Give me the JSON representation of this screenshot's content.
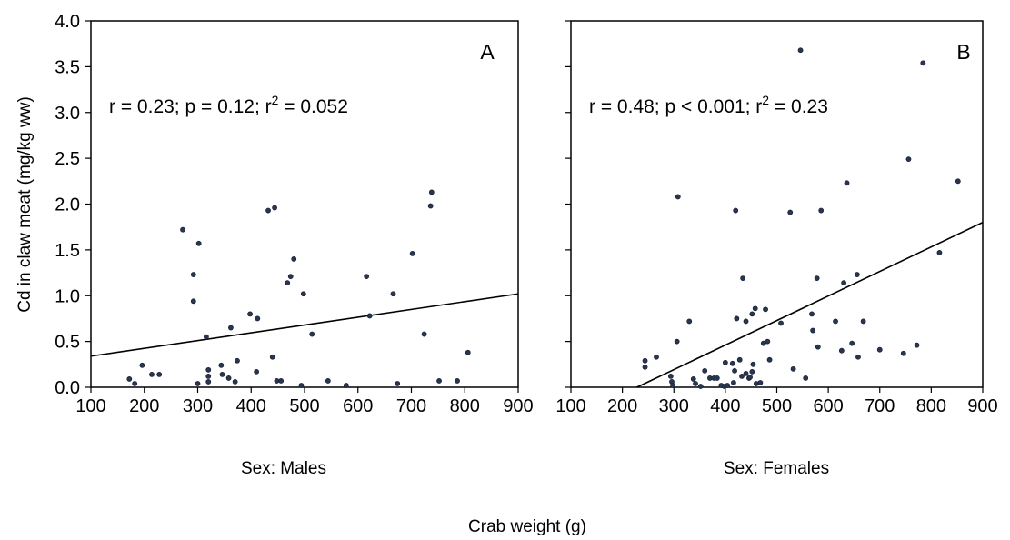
{
  "ylabel": "Cd in claw meat (mg/kg ww)",
  "xlabel": "Crab weight (g)",
  "chart_data": [
    {
      "type": "scatter",
      "panel": "A",
      "subtitle": "Sex: Males",
      "stats": {
        "r": "0.23",
        "p": "0.12",
        "r2": "0.052"
      },
      "annotation": {
        "prefix": "r = 0.23; p = 0.12; r",
        "sup": "2",
        "suffix": " = 0.052"
      },
      "xlim": [
        100,
        900
      ],
      "ylim": [
        0,
        4
      ],
      "xticks": [
        "100",
        "200",
        "300",
        "400",
        "500",
        "600",
        "700",
        "800",
        "900"
      ],
      "yticks": [
        "0.0",
        "0.5",
        "1.0",
        "1.5",
        "2.0",
        "2.5",
        "3.0",
        "3.5",
        "4.0"
      ],
      "regression_line": {
        "x": [
          100,
          900
        ],
        "y": [
          0.34,
          1.02
        ]
      },
      "points": [
        [
          172,
          0.09
        ],
        [
          182,
          0.04
        ],
        [
          196,
          0.24
        ],
        [
          214,
          0.14
        ],
        [
          228,
          0.14
        ],
        [
          272,
          1.72
        ],
        [
          292,
          1.23
        ],
        [
          292,
          0.94
        ],
        [
          300,
          0.04
        ],
        [
          302,
          1.57
        ],
        [
          316,
          0.55
        ],
        [
          320,
          0.19
        ],
        [
          320,
          0.12
        ],
        [
          320,
          0.06
        ],
        [
          344,
          0.24
        ],
        [
          346,
          0.14
        ],
        [
          358,
          0.1
        ],
        [
          362,
          0.65
        ],
        [
          370,
          0.06
        ],
        [
          374,
          0.29
        ],
        [
          398,
          0.8
        ],
        [
          410,
          0.17
        ],
        [
          412,
          0.75
        ],
        [
          432,
          1.93
        ],
        [
          440,
          0.33
        ],
        [
          444,
          1.96
        ],
        [
          448,
          0.07
        ],
        [
          456,
          0.07
        ],
        [
          468,
          1.14
        ],
        [
          474,
          1.21
        ],
        [
          480,
          1.4
        ],
        [
          494,
          0.02
        ],
        [
          498,
          1.02
        ],
        [
          514,
          0.58
        ],
        [
          544,
          0.07
        ],
        [
          578,
          0.02
        ],
        [
          616,
          1.21
        ],
        [
          622,
          0.78
        ],
        [
          666,
          1.02
        ],
        [
          674,
          0.04
        ],
        [
          702,
          1.46
        ],
        [
          724,
          0.58
        ],
        [
          736,
          1.98
        ],
        [
          738,
          2.13
        ],
        [
          752,
          0.07
        ],
        [
          786,
          0.07
        ],
        [
          806,
          0.38
        ]
      ]
    },
    {
      "type": "scatter",
      "panel": "B",
      "subtitle": "Sex: Females",
      "stats": {
        "r": "0.48",
        "p": "< 0.001",
        "r2": "0.23"
      },
      "annotation": {
        "prefix": "r = 0.48; p < 0.001; r",
        "sup": "2",
        "suffix": " = 0.23"
      },
      "xlim": [
        100,
        900
      ],
      "ylim": [
        0,
        4
      ],
      "xticks": [
        "100",
        "200",
        "300",
        "400",
        "500",
        "600",
        "700",
        "800",
        "900"
      ],
      "yticks": [
        "0.0",
        "0.5",
        "1.0",
        "1.5",
        "2.0",
        "2.5",
        "3.0",
        "3.5",
        "4.0"
      ],
      "regression_line": {
        "x": [
          228,
          900
        ],
        "y": [
          0,
          1.8
        ]
      },
      "points": [
        [
          244,
          0.29
        ],
        [
          244,
          0.22
        ],
        [
          266,
          0.33
        ],
        [
          294,
          0.12
        ],
        [
          296,
          0.06
        ],
        [
          298,
          0.02
        ],
        [
          306,
          0.5
        ],
        [
          308,
          2.08
        ],
        [
          330,
          0.72
        ],
        [
          338,
          0.09
        ],
        [
          342,
          0.04
        ],
        [
          352,
          0.01
        ],
        [
          360,
          0.18
        ],
        [
          370,
          0.1
        ],
        [
          378,
          0.1
        ],
        [
          384,
          0.1
        ],
        [
          392,
          0.02
        ],
        [
          398,
          0.01
        ],
        [
          400,
          0.27
        ],
        [
          404,
          0.02
        ],
        [
          414,
          0.26
        ],
        [
          416,
          0.05
        ],
        [
          418,
          0.18
        ],
        [
          420,
          1.93
        ],
        [
          422,
          0.75
        ],
        [
          428,
          0.3
        ],
        [
          432,
          0.12
        ],
        [
          434,
          1.19
        ],
        [
          440,
          0.72
        ],
        [
          440,
          0.15
        ],
        [
          446,
          0.1
        ],
        [
          448,
          0.11
        ],
        [
          452,
          0.17
        ],
        [
          452,
          0.8
        ],
        [
          454,
          0.25
        ],
        [
          458,
          0.86
        ],
        [
          460,
          0.04
        ],
        [
          468,
          0.05
        ],
        [
          474,
          0.48
        ],
        [
          478,
          0.85
        ],
        [
          482,
          0.5
        ],
        [
          486,
          0.3
        ],
        [
          508,
          0.7
        ],
        [
          526,
          1.91
        ],
        [
          532,
          0.2
        ],
        [
          546,
          3.68
        ],
        [
          556,
          0.1
        ],
        [
          568,
          0.8
        ],
        [
          570,
          0.62
        ],
        [
          578,
          1.19
        ],
        [
          580,
          0.44
        ],
        [
          586,
          1.93
        ],
        [
          614,
          0.72
        ],
        [
          626,
          0.4
        ],
        [
          630,
          1.14
        ],
        [
          636,
          2.23
        ],
        [
          646,
          0.48
        ],
        [
          656,
          1.23
        ],
        [
          658,
          0.33
        ],
        [
          668,
          0.72
        ],
        [
          700,
          0.41
        ],
        [
          746,
          0.37
        ],
        [
          756,
          2.49
        ],
        [
          772,
          0.46
        ],
        [
          784,
          3.54
        ],
        [
          816,
          1.47
        ],
        [
          852,
          2.25
        ]
      ]
    }
  ]
}
